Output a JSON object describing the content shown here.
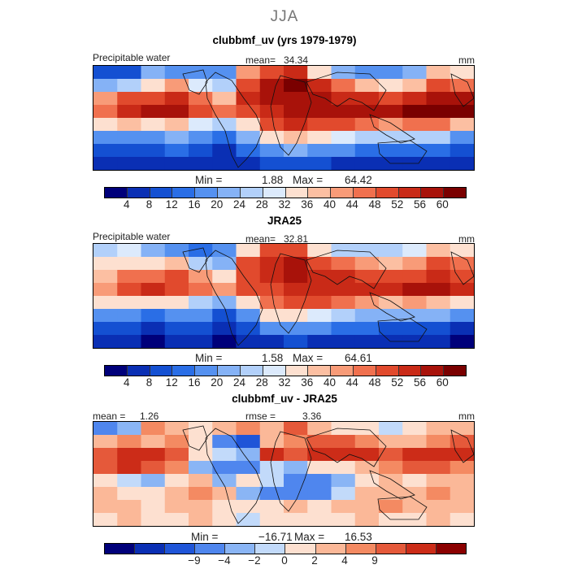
{
  "figure_title": "JJA",
  "chart_data": [
    {
      "type": "heatmap",
      "title": "clubbmf_uv (yrs 1979-1979)",
      "variable_label": "Precipitable water",
      "stat_label": "mean=",
      "stat_value": "34.34",
      "units": "mm",
      "min_label": "Min =",
      "min_value": "1.88",
      "max_label": "Max =",
      "max_value": "64.42",
      "colorbar_ticks": [
        "4",
        "8",
        "12",
        "16",
        "20",
        "24",
        "28",
        "32",
        "36",
        "40",
        "44",
        "48",
        "52",
        "56",
        "60"
      ],
      "colorbar_colors": [
        "#00007a",
        "#0a2fb4",
        "#1450d2",
        "#2a6ee6",
        "#5591f0",
        "#85b2f6",
        "#b2d0fa",
        "#dceafc",
        "#fde0d0",
        "#fcbfa2",
        "#f89b78",
        "#f0704e",
        "#e14a2d",
        "#c92a17",
        "#a8120a",
        "#7a0000"
      ],
      "lat_bands": [
        [
          0.15,
          0.15,
          0.35,
          0.3,
          0.25,
          0.3,
          0.65,
          0.8,
          0.85,
          0.55,
          0.35,
          0.3,
          0.28,
          0.35,
          0.6,
          0.55
        ],
        [
          0.35,
          0.4,
          0.55,
          0.65,
          0.45,
          0.4,
          0.8,
          0.9,
          0.95,
          0.85,
          0.7,
          0.6,
          0.55,
          0.6,
          0.75,
          0.7
        ],
        [
          0.65,
          0.75,
          0.8,
          0.82,
          0.7,
          0.6,
          0.85,
          0.9,
          0.92,
          0.88,
          0.85,
          0.82,
          0.8,
          0.85,
          0.92,
          0.9
        ],
        [
          0.7,
          0.85,
          0.9,
          0.88,
          0.75,
          0.7,
          0.8,
          0.85,
          0.9,
          0.9,
          0.88,
          0.9,
          0.92,
          0.95,
          0.98,
          0.95
        ],
        [
          0.55,
          0.6,
          0.55,
          0.62,
          0.45,
          0.4,
          0.55,
          0.75,
          0.85,
          0.8,
          0.75,
          0.7,
          0.68,
          0.72,
          0.7,
          0.6
        ],
        [
          0.3,
          0.3,
          0.25,
          0.35,
          0.3,
          0.2,
          0.35,
          0.55,
          0.6,
          0.5,
          0.45,
          0.4,
          0.38,
          0.4,
          0.4,
          0.3
        ],
        [
          0.15,
          0.18,
          0.15,
          0.2,
          0.18,
          0.12,
          0.2,
          0.3,
          0.35,
          0.3,
          0.25,
          0.22,
          0.2,
          0.22,
          0.2,
          0.15
        ],
        [
          0.08,
          0.1,
          0.08,
          0.12,
          0.1,
          0.08,
          0.1,
          0.15,
          0.18,
          0.15,
          0.12,
          0.12,
          0.1,
          0.1,
          0.1,
          0.08
        ]
      ]
    },
    {
      "type": "heatmap",
      "title": "JRA25",
      "variable_label": "Precipitable water",
      "stat_label": "mean=",
      "stat_value": "32.81",
      "units": "mm",
      "min_label": "Min =",
      "min_value": "1.58",
      "max_label": "Max =",
      "max_value": "64.61",
      "colorbar_ticks": [
        "4",
        "8",
        "12",
        "16",
        "20",
        "24",
        "28",
        "32",
        "36",
        "40",
        "44",
        "48",
        "52",
        "56",
        "60"
      ],
      "colorbar_colors": [
        "#00007a",
        "#0a2fb4",
        "#1450d2",
        "#2a6ee6",
        "#5591f0",
        "#85b2f6",
        "#b2d0fa",
        "#dceafc",
        "#fde0d0",
        "#fcbfa2",
        "#f89b78",
        "#f0704e",
        "#e14a2d",
        "#c92a17",
        "#a8120a",
        "#7a0000"
      ],
      "lat_bands": [
        [
          0.4,
          0.45,
          0.35,
          0.3,
          0.2,
          0.25,
          0.55,
          0.75,
          0.8,
          0.55,
          0.4,
          0.38,
          0.4,
          0.45,
          0.6,
          0.55
        ],
        [
          0.5,
          0.55,
          0.55,
          0.6,
          0.4,
          0.35,
          0.75,
          0.85,
          0.9,
          0.8,
          0.7,
          0.65,
          0.6,
          0.65,
          0.75,
          0.7
        ],
        [
          0.62,
          0.7,
          0.72,
          0.75,
          0.65,
          0.55,
          0.8,
          0.85,
          0.88,
          0.85,
          0.82,
          0.8,
          0.78,
          0.8,
          0.85,
          0.8
        ],
        [
          0.65,
          0.8,
          0.82,
          0.8,
          0.7,
          0.65,
          0.75,
          0.8,
          0.85,
          0.85,
          0.82,
          0.84,
          0.85,
          0.88,
          0.9,
          0.85
        ],
        [
          0.5,
          0.55,
          0.5,
          0.55,
          0.4,
          0.35,
          0.5,
          0.7,
          0.8,
          0.75,
          0.7,
          0.65,
          0.62,
          0.65,
          0.62,
          0.55
        ],
        [
          0.25,
          0.28,
          0.22,
          0.3,
          0.25,
          0.18,
          0.3,
          0.5,
          0.55,
          0.45,
          0.4,
          0.35,
          0.32,
          0.35,
          0.35,
          0.25
        ],
        [
          0.15,
          0.15,
          0.12,
          0.18,
          0.15,
          0.1,
          0.18,
          0.25,
          0.3,
          0.25,
          0.22,
          0.2,
          0.18,
          0.18,
          0.18,
          0.12
        ],
        [
          0.08,
          0.08,
          0.06,
          0.1,
          0.08,
          0.06,
          0.08,
          0.12,
          0.15,
          0.12,
          0.1,
          0.1,
          0.08,
          0.08,
          0.08,
          0.06
        ]
      ]
    },
    {
      "type": "heatmap",
      "title": "clubbmf_uv - JRA25",
      "stat_label": "mean =",
      "stat_value": "1.26",
      "stat2_label": "rmse =",
      "stat2_value": "3.36",
      "units": "mm",
      "min_label": "Min =",
      "min_value": "−16.71",
      "max_label": "Max =",
      "max_value": "16.53",
      "colorbar_ticks": [
        "−9",
        "−4",
        "−2",
        "0",
        "2",
        "4",
        "9"
      ],
      "colorbar_colors": [
        "#00007a",
        "#0a2fb4",
        "#1f55d8",
        "#4f86ee",
        "#8ab5f5",
        "#c2dafa",
        "#fde0d0",
        "#fbb898",
        "#f48a62",
        "#e5593a",
        "#cc2c18",
        "#8b0000"
      ],
      "lat_bands": [
        [
          0.3,
          0.4,
          0.7,
          0.65,
          0.55,
          0.6,
          0.7,
          0.6,
          0.75,
          0.65,
          0.55,
          0.5,
          0.45,
          0.55,
          0.6,
          0.65
        ],
        [
          0.6,
          0.7,
          0.65,
          0.7,
          0.55,
          0.25,
          0.2,
          0.65,
          0.7,
          0.75,
          0.8,
          0.7,
          0.65,
          0.6,
          0.7,
          0.75
        ],
        [
          0.75,
          0.85,
          0.85,
          0.8,
          0.55,
          0.45,
          0.4,
          0.85,
          0.8,
          0.85,
          0.88,
          0.85,
          0.82,
          0.85,
          0.9,
          0.88
        ],
        [
          0.8,
          0.88,
          0.75,
          0.7,
          0.4,
          0.3,
          0.3,
          0.45,
          0.4,
          0.55,
          0.5,
          0.6,
          0.7,
          0.75,
          0.8,
          0.7
        ],
        [
          0.55,
          0.45,
          0.35,
          0.55,
          0.6,
          0.4,
          0.55,
          0.45,
          0.3,
          0.25,
          0.35,
          0.55,
          0.6,
          0.55,
          0.65,
          0.6
        ],
        [
          0.6,
          0.55,
          0.5,
          0.65,
          0.7,
          0.6,
          0.4,
          0.3,
          0.25,
          0.3,
          0.45,
          0.6,
          0.65,
          0.6,
          0.7,
          0.65
        ],
        [
          0.65,
          0.6,
          0.55,
          0.6,
          0.65,
          0.55,
          0.5,
          0.55,
          0.6,
          0.55,
          0.6,
          0.65,
          0.7,
          0.62,
          0.65,
          0.6
        ],
        [
          0.55,
          0.6,
          0.5,
          0.55,
          0.6,
          0.55,
          0.45,
          0.5,
          0.55,
          0.5,
          0.55,
          0.6,
          0.58,
          0.55,
          0.6,
          0.55
        ]
      ]
    }
  ]
}
